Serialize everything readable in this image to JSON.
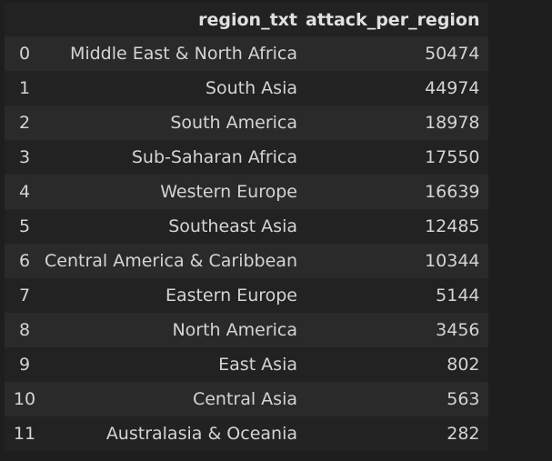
{
  "table": {
    "columns": [
      "",
      "region_txt",
      "attack_per_region"
    ],
    "rows": [
      {
        "index": "0",
        "region_txt": "Middle East & North Africa",
        "attack_per_region": "50474"
      },
      {
        "index": "1",
        "region_txt": "South Asia",
        "attack_per_region": "44974"
      },
      {
        "index": "2",
        "region_txt": "South America",
        "attack_per_region": "18978"
      },
      {
        "index": "3",
        "region_txt": "Sub-Saharan Africa",
        "attack_per_region": "17550"
      },
      {
        "index": "4",
        "region_txt": "Western Europe",
        "attack_per_region": "16639"
      },
      {
        "index": "5",
        "region_txt": "Southeast Asia",
        "attack_per_region": "12485"
      },
      {
        "index": "6",
        "region_txt": "Central America & Caribbean",
        "attack_per_region": "10344"
      },
      {
        "index": "7",
        "region_txt": "Eastern Europe",
        "attack_per_region": "5144"
      },
      {
        "index": "8",
        "region_txt": "North America",
        "attack_per_region": "3456"
      },
      {
        "index": "9",
        "region_txt": "East Asia",
        "attack_per_region": "802"
      },
      {
        "index": "10",
        "region_txt": "Central Asia",
        "attack_per_region": "563"
      },
      {
        "index": "11",
        "region_txt": "Australasia & Oceania",
        "attack_per_region": "282"
      }
    ]
  }
}
